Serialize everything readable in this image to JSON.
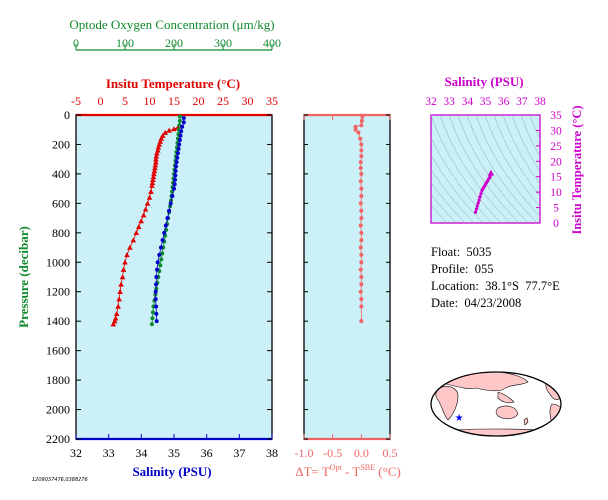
{
  "colors": {
    "panel_bg": "#ccf0f7",
    "temperature": "#e00000",
    "salinity": "#0000c8",
    "oxygen": "#0f8a2c",
    "delta_t": "#f06464",
    "ts": "#cc00cc",
    "land": "#ffc8c8",
    "float_marker": "#0000ff"
  },
  "chart_data": [
    {
      "type": "scatter",
      "panel": "profiles",
      "ylabel": "Pressure (decibar)",
      "y_ticks": [
        0,
        200,
        400,
        600,
        800,
        1000,
        1200,
        1400,
        1600,
        1800,
        2000,
        2200
      ],
      "ylim": [
        2200,
        0
      ],
      "axes": {
        "oxygen": {
          "label": "Optode Oxygen Concentration (μm/kg)",
          "ticks": [
            0,
            100,
            200,
            300,
            400
          ],
          "range": [
            0,
            400
          ]
        },
        "temperature": {
          "label": "Insitu Temperature (°C)",
          "ticks": [
            -5,
            0,
            5,
            10,
            15,
            20,
            25,
            30,
            35
          ],
          "range": [
            -5,
            35
          ]
        },
        "salinity": {
          "label": "Salinity (PSU)",
          "ticks": [
            32,
            33,
            34,
            35,
            36,
            37,
            38
          ],
          "range": [
            32,
            38
          ]
        }
      },
      "series": [
        {
          "axis": "temperature",
          "marker": "triangle",
          "x": [
            16.2,
            15.8,
            15.0,
            14.0,
            13.2,
            12.7,
            12.4,
            12.2,
            12.0,
            11.8,
            11.7,
            11.5,
            11.4,
            11.3,
            11.3,
            11.2,
            11.1,
            11.0,
            10.9,
            10.8,
            10.7,
            10.6,
            10.5,
            10.3,
            10.0,
            9.6,
            9.2,
            8.8,
            8.3,
            7.8,
            7.3,
            6.7,
            6.0,
            5.4,
            5.0,
            4.7,
            4.5,
            4.2,
            4.0,
            3.8,
            3.6,
            3.3,
            3.1,
            2.9,
            2.6
          ],
          "y": [
            70,
            85,
            95,
            105,
            120,
            140,
            160,
            180,
            200,
            220,
            240,
            260,
            280,
            300,
            320,
            340,
            360,
            380,
            400,
            420,
            440,
            460,
            480,
            520,
            560,
            600,
            640,
            680,
            720,
            760,
            800,
            850,
            900,
            950,
            1000,
            1050,
            1100,
            1150,
            1200,
            1250,
            1300,
            1350,
            1380,
            1400,
            1420
          ]
        },
        {
          "axis": "salinity",
          "marker": "dot",
          "x": [
            35.3,
            35.3,
            35.25,
            35.22,
            35.2,
            35.18,
            35.16,
            35.14,
            35.12,
            35.1,
            35.08,
            35.06,
            35.05,
            35.04,
            35.03,
            35.02,
            35.0,
            34.95,
            34.9,
            34.85,
            34.8,
            34.75,
            34.7,
            34.65,
            34.6,
            34.55,
            34.5,
            34.48,
            34.46,
            34.45,
            34.44,
            34.44,
            34.45,
            34.46,
            34.47
          ],
          "y": [
            20,
            50,
            80,
            110,
            140,
            170,
            200,
            230,
            260,
            290,
            320,
            350,
            380,
            410,
            440,
            470,
            500,
            550,
            600,
            650,
            700,
            750,
            800,
            850,
            900,
            950,
            1000,
            1050,
            1100,
            1150,
            1200,
            1250,
            1300,
            1350,
            1400
          ]
        },
        {
          "axis": "oxygen",
          "marker": "dot",
          "x": [
            212,
            212,
            211,
            210,
            209,
            208,
            207,
            206,
            205,
            204,
            203,
            202,
            201,
            200,
            199,
            198,
            197,
            196,
            195,
            194,
            192,
            190,
            188,
            186,
            184,
            182,
            180,
            178,
            176,
            174,
            172,
            170,
            168,
            166,
            164,
            162,
            160,
            158,
            157,
            156,
            155
          ],
          "y": [
            10,
            40,
            70,
            100,
            130,
            160,
            190,
            220,
            250,
            280,
            310,
            340,
            370,
            400,
            430,
            460,
            490,
            520,
            550,
            580,
            620,
            660,
            700,
            740,
            780,
            820,
            860,
            900,
            940,
            980,
            1020,
            1060,
            1100,
            1140,
            1180,
            1220,
            1260,
            1300,
            1340,
            1380,
            1420
          ]
        }
      ]
    },
    {
      "type": "scatter",
      "panel": "delta_t",
      "xlabel": "ΔT= T",
      "xlabel_sup1": "Opt",
      "xlabel_mid": " - T",
      "xlabel_sup2": "SBE",
      "xlabel_tail": " (°C)",
      "x_ticks": [
        -1.0,
        -0.5,
        0.0,
        0.5
      ],
      "x_tick_labels": [
        "-1.0",
        "-0.5",
        "0.0",
        "0.5"
      ],
      "xlim": [
        -1.0,
        0.5
      ],
      "ylim": [
        2200,
        0
      ],
      "x": [
        0.02,
        0.01,
        0.0,
        -0.1,
        -0.1,
        -0.05,
        -0.02,
        0.0,
        0.0,
        0.0,
        -0.01,
        -0.01,
        0.0,
        -0.01,
        0.0,
        0.0,
        -0.01,
        0.0,
        0.0,
        -0.01,
        0.0,
        0.0,
        -0.01,
        0.0,
        0.0,
        -0.01,
        0.0,
        0.0,
        -0.01,
        0.0,
        0.0,
        0.0
      ],
      "y": [
        10,
        40,
        70,
        80,
        100,
        120,
        160,
        200,
        240,
        280,
        320,
        360,
        400,
        450,
        500,
        550,
        600,
        650,
        700,
        750,
        800,
        850,
        900,
        950,
        1000,
        1050,
        1100,
        1150,
        1200,
        1250,
        1300,
        1400
      ]
    },
    {
      "type": "scatter",
      "panel": "ts_diagram",
      "xlabel": "Salinity (PSU)",
      "ylabel": "Insitu Temperature (°C)",
      "x_ticks": [
        32,
        33,
        34,
        35,
        36,
        37,
        38
      ],
      "xlim": [
        32,
        38
      ],
      "y_ticks": [
        0,
        5,
        10,
        15,
        20,
        25,
        30,
        35
      ],
      "ylim": [
        0,
        35
      ],
      "x": [
        34.45,
        34.5,
        34.55,
        34.6,
        34.65,
        34.7,
        34.75,
        34.8,
        34.85,
        34.9,
        34.95,
        35.0,
        35.05,
        35.1,
        35.15,
        35.2,
        35.25,
        35.3
      ],
      "y": [
        3.5,
        4.5,
        5.5,
        6.5,
        7.5,
        8.5,
        9.5,
        10.5,
        11.0,
        11.5,
        12.0,
        12.5,
        13.0,
        13.5,
        14.0,
        14.5,
        15.0,
        16.2
      ]
    }
  ],
  "float_info": {
    "float": "Float:  5035",
    "profile": "Profile:  055",
    "location": "Location:  38.1°S  77.7°E",
    "date": "Date:  04/23/2008"
  },
  "map": {
    "marker_lon": 77.7,
    "marker_lat": -38.1,
    "marker_icon": "star-icon"
  },
  "stamp": "1209037476,0388276"
}
